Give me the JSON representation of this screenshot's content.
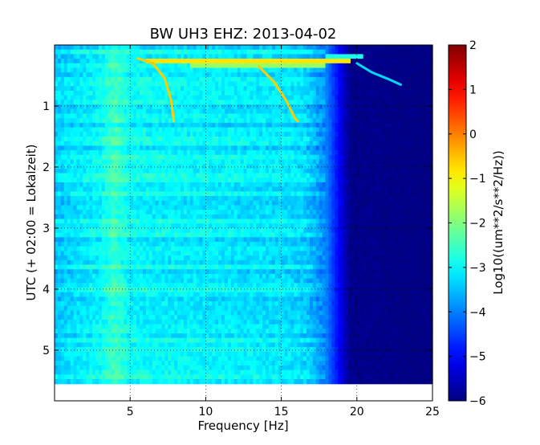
{
  "chart_data": {
    "type": "heatmap",
    "title": "BW UH3 EHZ: 2013-04-02",
    "xlabel": "Frequency [Hz]",
    "ylabel": "UTC (+ 02:00 = Lokalzeit)",
    "xlim": [
      0,
      25
    ],
    "ylim": [
      0,
      5.83
    ],
    "y_inverted": true,
    "data_extent_hours": 5.55,
    "x_ticks": [
      5,
      10,
      15,
      20,
      25
    ],
    "x_tick_labels": [
      "5",
      "10",
      "15",
      "20",
      "25"
    ],
    "y_ticks": [
      1,
      2,
      3,
      4,
      5
    ],
    "y_tick_labels": [
      "1",
      "2",
      "3",
      "4",
      "5"
    ],
    "grid": true,
    "colormap": "jet",
    "colorbar": {
      "label": "Log10((um**2/s**2/Hz))",
      "range": [
        -6,
        2
      ],
      "ticks": [
        2,
        1,
        0,
        -1,
        -2,
        -3,
        -4,
        -5,
        -6
      ],
      "tick_labels": [
        "2",
        "1",
        "0",
        "−1",
        "−2",
        "−3",
        "−4",
        "−5",
        "−6"
      ]
    },
    "level_profile": [
      {
        "freq": 0,
        "value": -3.4
      },
      {
        "freq": 3,
        "value": -3.0
      },
      {
        "freq": 4,
        "value": -2.5
      },
      {
        "freq": 5,
        "value": -3.0
      },
      {
        "freq": 10,
        "value": -3.1
      },
      {
        "freq": 15,
        "value": -3.2
      },
      {
        "freq": 16.5,
        "value": -3.3
      },
      {
        "freq": 18,
        "value": -4.0
      },
      {
        "freq": 18.8,
        "value": -5.0
      },
      {
        "freq": 19.5,
        "value": -5.9
      },
      {
        "freq": 25,
        "value": -6.0
      }
    ],
    "features": [
      {
        "kind": "sweep",
        "points": [
          [
            5.5,
            0.22
          ],
          [
            6.5,
            0.3
          ],
          [
            7.3,
            0.55
          ],
          [
            7.7,
            0.9
          ],
          [
            7.9,
            1.25
          ]
        ],
        "value": -0.6
      },
      {
        "kind": "sweep",
        "points": [
          [
            13.5,
            0.35
          ],
          [
            14.5,
            0.6
          ],
          [
            15.3,
            0.9
          ],
          [
            15.9,
            1.2
          ],
          [
            16.1,
            1.25
          ]
        ],
        "value": -0.6
      },
      {
        "kind": "sweep",
        "points": [
          [
            20.0,
            0.3
          ],
          [
            21.0,
            0.45
          ],
          [
            22.0,
            0.55
          ],
          [
            22.9,
            0.65
          ]
        ],
        "value": -3.3
      },
      {
        "kind": "band",
        "f0": 6.0,
        "f1": 19.5,
        "t": 0.25,
        "value": -0.8
      },
      {
        "kind": "band",
        "f0": 9.0,
        "f1": 18.0,
        "t": 0.33,
        "value": -1.8
      },
      {
        "kind": "band",
        "f0": 18.0,
        "f1": 20.5,
        "t": 0.2,
        "value": -2.8
      }
    ]
  }
}
